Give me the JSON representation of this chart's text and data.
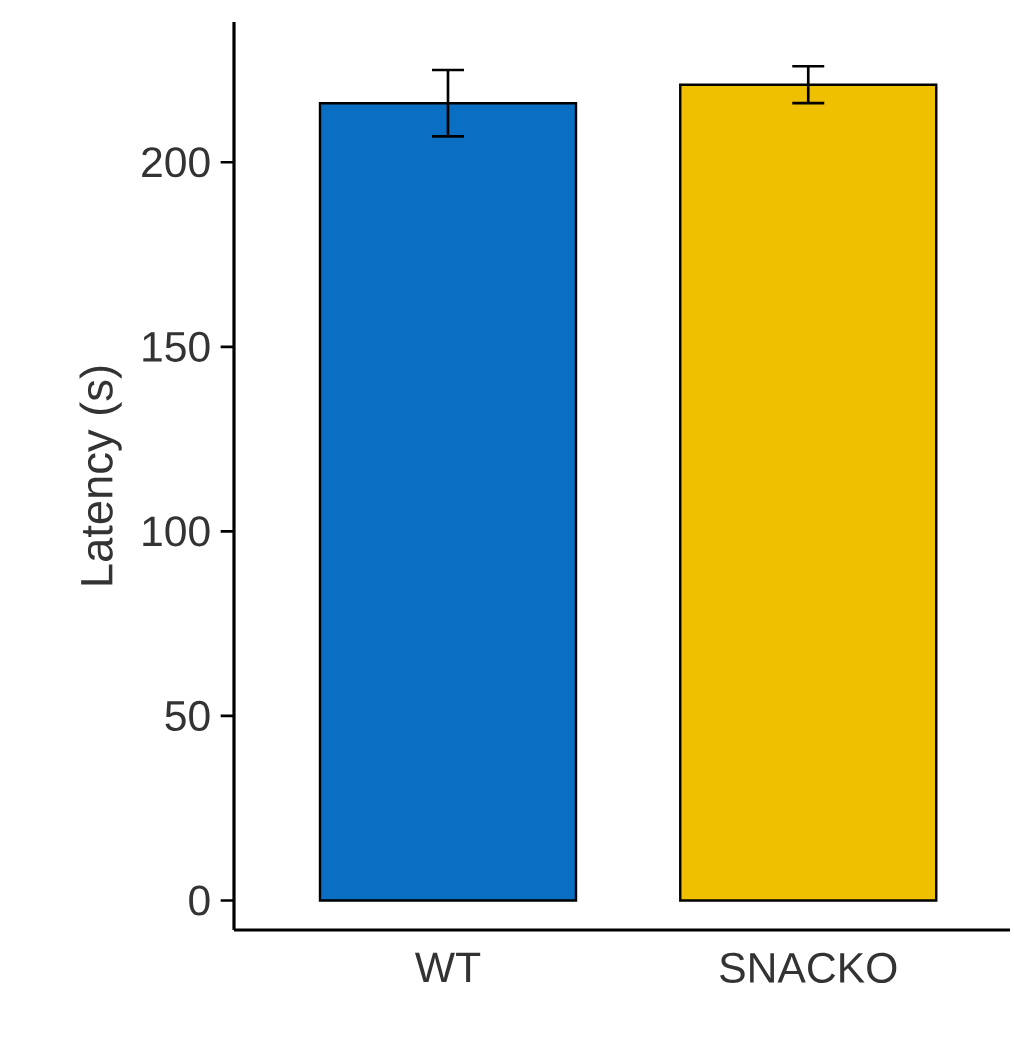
{
  "chart_data": {
    "type": "bar",
    "ylabel": "Latency (s)",
    "categories": [
      "WT",
      "SNACKO"
    ],
    "values": [
      216,
      221
    ],
    "colors": [
      "#0a6fc2",
      "#efc000"
    ],
    "errors": [
      9,
      5
    ],
    "ylim": [
      -8,
      238
    ],
    "yticks": [
      0,
      50,
      100,
      150,
      200
    ],
    "grid": false
  }
}
